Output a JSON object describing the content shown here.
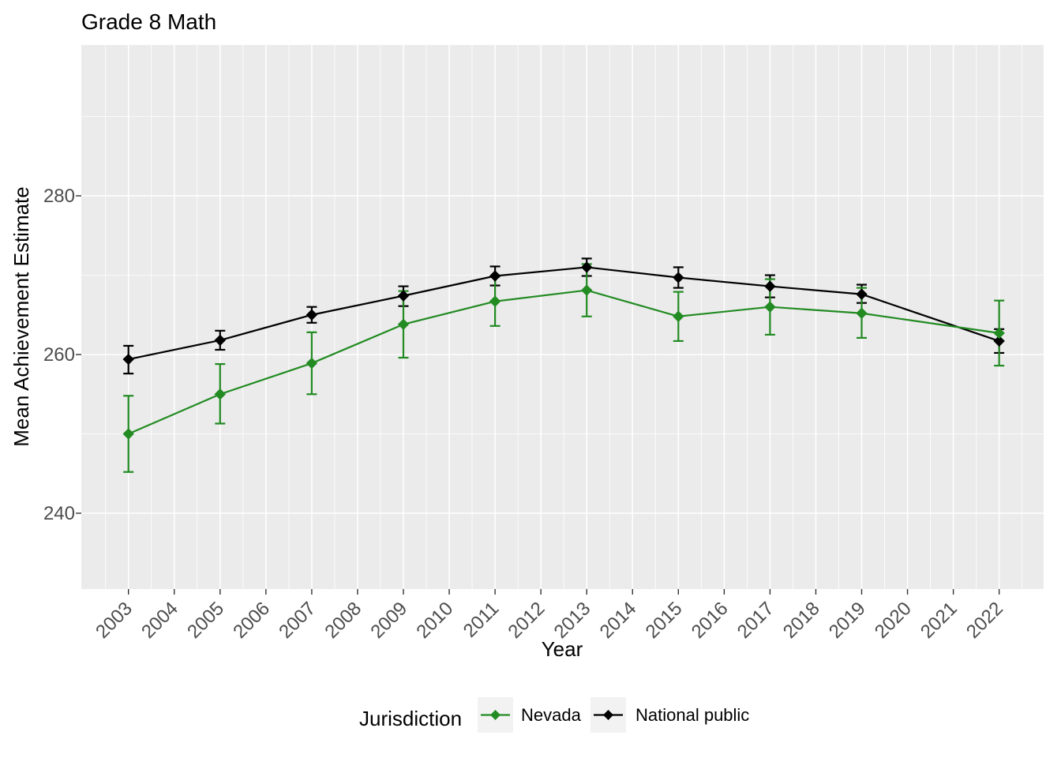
{
  "chart_data": {
    "type": "line",
    "title": "Grade 8 Math",
    "xlabel": "Year",
    "ylabel": "Mean Achievement Estimate",
    "x_ticks": [
      2003,
      2004,
      2005,
      2006,
      2007,
      2008,
      2009,
      2010,
      2011,
      2012,
      2013,
      2014,
      2015,
      2016,
      2017,
      2018,
      2019,
      2020,
      2021,
      2022
    ],
    "y_ticks": [
      240,
      260,
      280
    ],
    "y_minor_ticks": [
      250,
      270,
      290
    ],
    "xlim": [
      2002.05,
      2022.95
    ],
    "ylim": [
      230.5,
      299.0
    ],
    "grid": true,
    "panel_bg": "#EBEBEB",
    "grid_color": "#FFFFFF",
    "tick_color": "#333333",
    "tick_text_color": "#4D4D4D",
    "legend": {
      "title": "Jurisdiction",
      "position": "bottom",
      "key_fill": "#F2F2F2"
    },
    "x": [
      2003,
      2005,
      2007,
      2009,
      2011,
      2013,
      2015,
      2017,
      2019,
      2022
    ],
    "series": [
      {
        "name": "Nevada",
        "color": "#228B22",
        "values": [
          250.0,
          255.0,
          258.9,
          263.8,
          266.7,
          268.1,
          264.8,
          266.0,
          265.2,
          262.7
        ],
        "err_low": [
          245.2,
          251.3,
          255.0,
          259.6,
          263.6,
          264.8,
          261.7,
          262.5,
          262.1,
          258.6
        ],
        "err_high": [
          254.8,
          258.8,
          262.8,
          268.0,
          269.8,
          271.4,
          267.9,
          269.5,
          268.4,
          266.8
        ]
      },
      {
        "name": "National public",
        "color": "#000000",
        "values": [
          259.4,
          261.8,
          265.0,
          267.4,
          269.9,
          271.0,
          269.7,
          268.6,
          267.6,
          261.7
        ],
        "err_low": [
          257.6,
          260.6,
          264.0,
          266.1,
          268.7,
          269.9,
          268.4,
          267.2,
          266.5,
          260.2
        ],
        "err_high": [
          261.1,
          263.0,
          266.0,
          268.6,
          271.1,
          272.1,
          271.0,
          270.0,
          268.8,
          263.2
        ]
      }
    ]
  }
}
